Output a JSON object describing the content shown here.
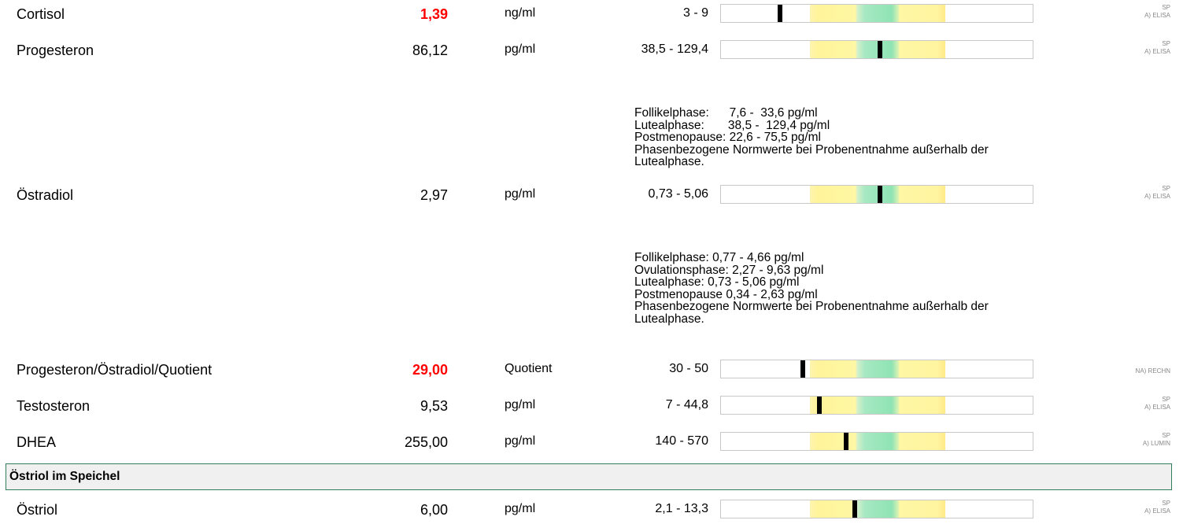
{
  "results": [
    {
      "name": "Cortisol",
      "value": "1,39",
      "abnormal": true,
      "unit": "ng/ml",
      "range": "3 - 9",
      "marker_fraction": -0.22,
      "method_line1": "SP",
      "method_line2": "A) ELISA"
    },
    {
      "name": "Progesteron",
      "value": "86,12",
      "abnormal": false,
      "unit": "pg/ml",
      "range": "38,5 - 129,4",
      "marker_fraction": 0.52,
      "method_line1": "SP",
      "method_line2": "A) ELISA"
    },
    {
      "name": "Östradiol",
      "value": "2,97",
      "abnormal": false,
      "unit": "pg/ml",
      "range": "0,73 - 5,06",
      "marker_fraction": 0.52,
      "method_line1": "SP",
      "method_line2": "A) ELISA"
    },
    {
      "name": "Progesteron/Östradiol/Quotient",
      "value": "29,00",
      "abnormal": true,
      "unit": "Quotient",
      "range": "30 - 50",
      "marker_fraction": -0.05,
      "method_line1": "",
      "method_line2": "NA) RECHN"
    },
    {
      "name": "Testosteron",
      "value": "9,53",
      "abnormal": false,
      "unit": "pg/ml",
      "range": "7 - 44,8",
      "marker_fraction": 0.07,
      "method_line1": "SP",
      "method_line2": "A) ELISA"
    },
    {
      "name": "DHEA",
      "value": "255,00",
      "abnormal": false,
      "unit": "pg/ml",
      "range": "140 - 570",
      "marker_fraction": 0.27,
      "method_line1": "SP",
      "method_line2": "A) LUMIN"
    }
  ],
  "notes": {
    "progesteron": [
      "Follikelphase:      7,6 -  33,6 pg/ml",
      "Lutealphase:       38,5 -  129,4 pg/ml",
      "Postmenopause: 22,6 - 75,5 pg/ml",
      "Phasenbezogene Normwerte bei Probenentnahme außerhalb der",
      "Lutealphase."
    ],
    "oestradiol": [
      "Follikelphase: 0,77 - 4,66 pg/ml",
      "Ovulationsphase: 2,27 - 9,63 pg/ml",
      "Lutealphase: 0,73 - 5,06 pg/ml",
      "Postmenopause 0,34 - 2,63 pg/ml",
      "Phasenbezogene Normwerte bei Probenentnahme außerhalb der",
      "Lutealphase."
    ]
  },
  "section": {
    "title": "Östriol im Speichel"
  },
  "section_results": [
    {
      "name": "Östriol",
      "value": "6,00",
      "abnormal": false,
      "unit": "pg/ml",
      "range": "2,1 - 13,3",
      "marker_fraction": 0.33,
      "method_line1": "SP",
      "method_line2": "A) ELISA"
    }
  ],
  "colors": {
    "abnormal": "#ff0000",
    "section_border": "#2e7d5b",
    "method_text": "#888888"
  }
}
